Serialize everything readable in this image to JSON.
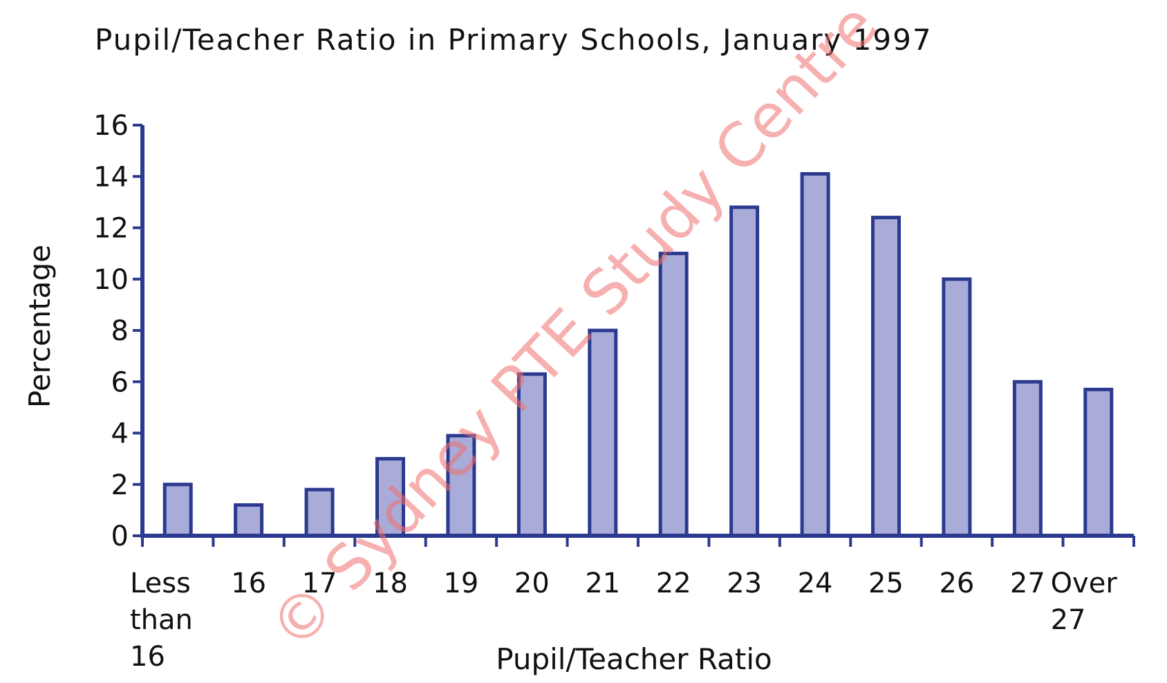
{
  "chart_data": {
    "type": "bar",
    "title": "Pupil/Teacher Ratio in Primary Schools, January 1997",
    "xlabel": "Pupil/Teacher Ratio",
    "ylabel": "Percentage",
    "categories": [
      [
        "Less",
        "than",
        "16"
      ],
      [
        "16"
      ],
      [
        "17"
      ],
      [
        "18"
      ],
      [
        "19"
      ],
      [
        "20"
      ],
      [
        "21"
      ],
      [
        "22"
      ],
      [
        "23"
      ],
      [
        "24"
      ],
      [
        "25"
      ],
      [
        "26"
      ],
      [
        "27"
      ],
      [
        "Over",
        "27"
      ]
    ],
    "values": [
      2,
      1.2,
      1.8,
      3,
      3.9,
      6.3,
      8,
      11,
      12.8,
      14.1,
      12.4,
      10,
      6,
      5.7
    ],
    "ylim": [
      0,
      16
    ],
    "yticks": [
      0,
      2,
      4,
      6,
      8,
      10,
      12,
      14,
      16
    ],
    "grid": false,
    "colors": {
      "bar_fill": "#a9acd8",
      "bar_stroke": "#2b3a8f",
      "axis": "#2b3a8f"
    }
  },
  "watermark": {
    "text": "© Sydney PTE Study Centre",
    "color": "#f07070"
  }
}
